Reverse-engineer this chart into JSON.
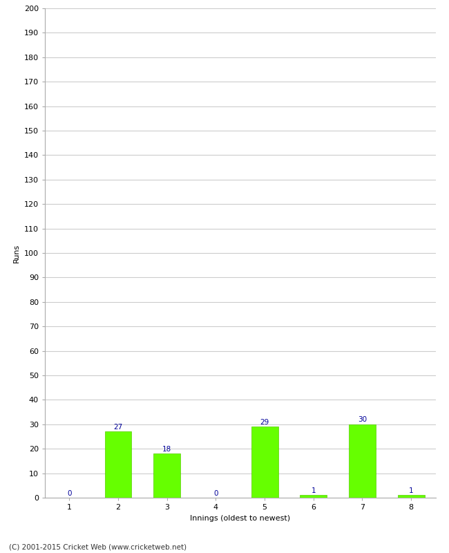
{
  "xlabel": "Innings (oldest to newest)",
  "ylabel": "Runs",
  "categories": [
    1,
    2,
    3,
    4,
    5,
    6,
    7,
    8
  ],
  "values": [
    0,
    27,
    18,
    0,
    29,
    1,
    30,
    1
  ],
  "bar_color": "#66ff00",
  "bar_edge_color": "#55cc00",
  "label_color": "#000099",
  "ylim": [
    0,
    200
  ],
  "yticks": [
    0,
    10,
    20,
    30,
    40,
    50,
    60,
    70,
    80,
    90,
    100,
    110,
    120,
    130,
    140,
    150,
    160,
    170,
    180,
    190,
    200
  ],
  "background_color": "#ffffff",
  "grid_color": "#cccccc",
  "footer_text": "(C) 2001-2015 Cricket Web (www.cricketweb.net)",
  "label_fontsize": 7.5,
  "axis_tick_fontsize": 8,
  "axis_label_fontsize": 8,
  "footer_fontsize": 7.5,
  "bar_width": 0.55
}
